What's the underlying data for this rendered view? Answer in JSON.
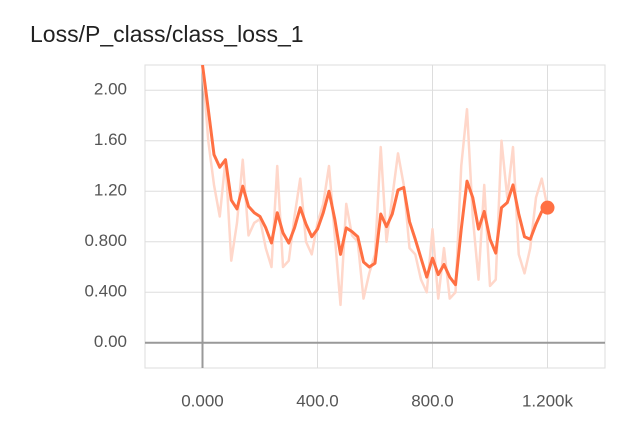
{
  "chart_data": {
    "type": "line",
    "title": "Loss/P_class/class_loss_1",
    "x": [
      0,
      20,
      40,
      60,
      80,
      100,
      120,
      140,
      160,
      180,
      200,
      220,
      240,
      260,
      280,
      300,
      320,
      340,
      360,
      380,
      400,
      420,
      440,
      460,
      480,
      500,
      520,
      540,
      560,
      580,
      600,
      620,
      640,
      660,
      680,
      700,
      720,
      740,
      760,
      780,
      800,
      820,
      840,
      860,
      880,
      900,
      920,
      940,
      960,
      980,
      1000,
      1020,
      1040,
      1060,
      1080,
      1100,
      1120,
      1140,
      1160,
      1180,
      1200
    ],
    "series": [
      {
        "color": "#ffd7ca",
        "values": [
          2.2,
          1.6,
          1.25,
          1.0,
          1.45,
          0.65,
          0.95,
          1.45,
          0.85,
          0.95,
          0.98,
          0.75,
          0.6,
          1.4,
          0.6,
          0.65,
          1.0,
          1.3,
          0.8,
          0.7,
          0.95,
          1.1,
          1.4,
          0.85,
          0.3,
          1.1,
          0.85,
          0.8,
          0.35,
          0.55,
          0.7,
          1.55,
          0.8,
          1.15,
          1.5,
          1.25,
          0.75,
          0.7,
          0.5,
          0.4,
          0.9,
          0.35,
          0.75,
          0.35,
          0.4,
          1.4,
          1.85,
          1.0,
          0.5,
          1.25,
          0.45,
          0.5,
          1.6,
          1.15,
          1.55,
          0.7,
          0.55,
          0.75,
          1.15,
          1.3,
          1.07
        ]
      },
      {
        "color": "#ff7043",
        "values": [
          2.2,
          1.85,
          1.49,
          1.39,
          1.45,
          1.13,
          1.06,
          1.24,
          1.08,
          1.03,
          1.0,
          0.91,
          0.79,
          1.03,
          0.87,
          0.79,
          0.91,
          1.07,
          0.94,
          0.84,
          0.9,
          1.03,
          1.2,
          0.98,
          0.7,
          0.91,
          0.88,
          0.84,
          0.64,
          0.6,
          0.63,
          1.02,
          0.92,
          1.02,
          1.21,
          1.23,
          0.96,
          0.82,
          0.67,
          0.52,
          0.67,
          0.54,
          0.62,
          0.52,
          0.46,
          0.9,
          1.28,
          1.15,
          0.9,
          1.04,
          0.82,
          0.71,
          1.07,
          1.11,
          1.25,
          1.02,
          0.84,
          0.82,
          0.94,
          1.04,
          1.07
        ]
      }
    ],
    "xlim": [
      -200,
      1400
    ],
    "ylim": [
      -0.2,
      2.2
    ],
    "xticks": [
      {
        "value": 0,
        "label": "0.000"
      },
      {
        "value": 400,
        "label": "400.0"
      },
      {
        "value": 800,
        "label": "800.0"
      },
      {
        "value": 1200,
        "label": "1.200k"
      }
    ],
    "yticks": [
      {
        "value": 0,
        "label": "0.00"
      },
      {
        "value": 0.4,
        "label": "0.400"
      },
      {
        "value": 0.8,
        "label": "0.800"
      },
      {
        "value": 1.2,
        "label": "1.20"
      },
      {
        "value": 1.6,
        "label": "1.60"
      },
      {
        "value": 2,
        "label": "2.00"
      }
    ],
    "grid": true
  }
}
